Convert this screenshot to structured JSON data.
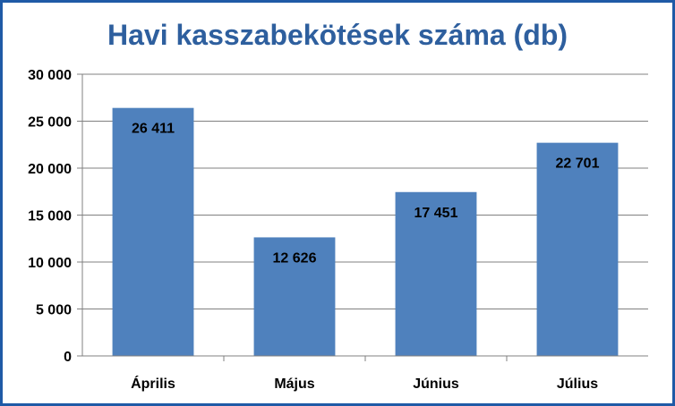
{
  "chart_data": {
    "type": "bar",
    "title": "Havi kasszabekötések száma (db)",
    "categories": [
      "Április",
      "Május",
      "Június",
      "Július"
    ],
    "values": [
      26411,
      12626,
      17451,
      22701
    ],
    "data_labels": [
      "26 411",
      "12 626",
      "17 451",
      "22 701"
    ],
    "xlabel": "",
    "ylabel": "",
    "ylim": [
      0,
      30000
    ],
    "yticks": [
      0,
      5000,
      10000,
      15000,
      20000,
      25000,
      30000
    ],
    "ytick_labels": [
      "0",
      "5 000",
      "10 000",
      "15 000",
      "20 000",
      "25 000",
      "30 000"
    ],
    "grid": true,
    "legend": "none",
    "colors": {
      "bar": "#4f81bd",
      "title": "#2e5f9e",
      "frame": "#1f5aa6",
      "grid": "#808080"
    }
  }
}
